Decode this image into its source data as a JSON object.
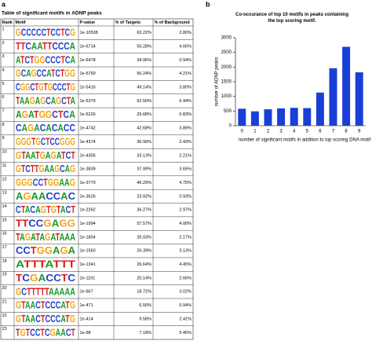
{
  "panel_a": {
    "label": "a",
    "title": "Table of significant motifs in ADNP peaks",
    "columns": [
      "Rank",
      "Motif",
      "P-value",
      "% of Targets",
      "% of Background"
    ],
    "rows": [
      [
        1,
        "GCCCCCTCCTCG",
        "1e-10538",
        "63.22%",
        "2.80%"
      ],
      [
        2,
        "TTCAATTCCCA",
        "1e-6714",
        "55.28%",
        "4.66%"
      ],
      [
        3,
        "ATCTGGCCCTCA",
        "1e-6478",
        "34.95%",
        "0.94%"
      ],
      [
        4,
        "GCAGCCATCTGG",
        "1e-5759",
        "56.24%",
        "4.21%"
      ],
      [
        5,
        "CGGCTGTGCCCTG",
        "1e-5416",
        "49.14%",
        "3.80%"
      ],
      [
        6,
        "TAAGAGCAGCTA",
        "1e-5379",
        "62.50%",
        "6.44%"
      ],
      [
        7,
        "AGATGGCTCA",
        "1e-5226",
        "29.68%",
        "0.83%"
      ],
      [
        8,
        "CAGACACACC",
        "1e-4742",
        "42.68%",
        "3.89%"
      ],
      [
        9,
        "GGGTGCTCCGGG",
        "1e-4374",
        "36.99%",
        "2.43%"
      ],
      [
        10,
        "GTAATGAGATCT",
        "1e-4305",
        "33.13%",
        "2.21%"
      ],
      [
        11,
        "GTCTTGAAGCAG",
        "1e-3839",
        "37.99%",
        "3.65%"
      ],
      [
        12,
        "GGGCCTGGAAG",
        "1e-3770",
        "46.29%",
        "4.75%"
      ],
      [
        13,
        "AGAACCAC",
        "1e-3626",
        "23.92%",
        "0.93%"
      ],
      [
        14,
        "CTACAGTGTACT",
        "1e-2262",
        "36.27%",
        "2.97%"
      ],
      [
        15,
        "TTCCGAGG",
        "1e-1994",
        "57.57%",
        "4.00%"
      ],
      [
        16,
        "TAGATAGATAAA",
        "1e-1804",
        "26.03%",
        "2.17%"
      ],
      [
        17,
        "CCTGGAGA",
        "1e-1560",
        "26.39%",
        "3.13%"
      ],
      [
        18,
        "ATTTATTT",
        "1e-1341",
        "26.64%",
        "4.45%"
      ],
      [
        19,
        "TCGACCTC",
        "1e-1191",
        "20.14%",
        "2.66%"
      ],
      [
        20,
        "GCTTTTTAAAAA",
        "1e-667",
        "18.72%",
        "3.02%"
      ],
      [
        21,
        "GTAACTCCCATG",
        "1e-471",
        "6.50%",
        "0.94%"
      ],
      [
        22,
        "GTAACTCCCATG",
        "1e-414",
        "9.58%",
        "2.41%"
      ],
      [
        23,
        "TGTCCTCGAACT",
        "1e-98",
        "7.18%",
        "5.45%"
      ]
    ]
  },
  "chart_data": {
    "type": "bar",
    "panel_label": "b",
    "title": "Co-occurance of top 10 motifs in peaks containing the top scoring motif.",
    "x_label": "number of significant motifs in addition to top scoring DNA motif",
    "y_label": "number of ADNP peaks",
    "categories": [
      "0",
      "1",
      "2",
      "3",
      "4",
      "5",
      "6",
      "7",
      "8",
      "9"
    ],
    "values": [
      580,
      490,
      560,
      590,
      610,
      600,
      1130,
      1960,
      2690,
      1820
    ],
    "color": "#1a3fd6",
    "ylim": [
      0,
      3000
    ],
    "yticks": [
      0,
      500,
      1000,
      1500,
      2000,
      2500,
      3000
    ]
  }
}
